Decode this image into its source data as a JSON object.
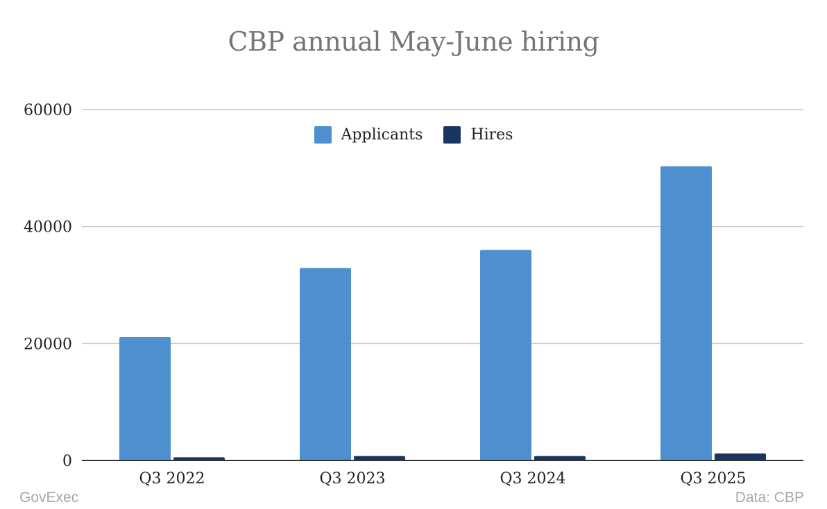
{
  "chart_data": {
    "type": "bar",
    "title": "CBP annual May-June hiring",
    "categories": [
      "Q3 2022",
      "Q3 2023",
      "Q3 2024",
      "Q3 2025"
    ],
    "series": [
      {
        "name": "Applicants",
        "color": "#4e90cf",
        "values": [
          21100,
          32900,
          36000,
          50300
        ]
      },
      {
        "name": "Hires",
        "color": "#1b3562",
        "values": [
          550,
          750,
          750,
          1200
        ]
      }
    ],
    "ylim": [
      0,
      60000
    ],
    "yticks": [
      "0",
      "20000",
      "40000",
      "60000"
    ],
    "grid": true,
    "legend_position": "top-center",
    "xlabel": "",
    "ylabel": ""
  },
  "footer": {
    "brand": "GovExec",
    "source": "Data: CBP"
  }
}
